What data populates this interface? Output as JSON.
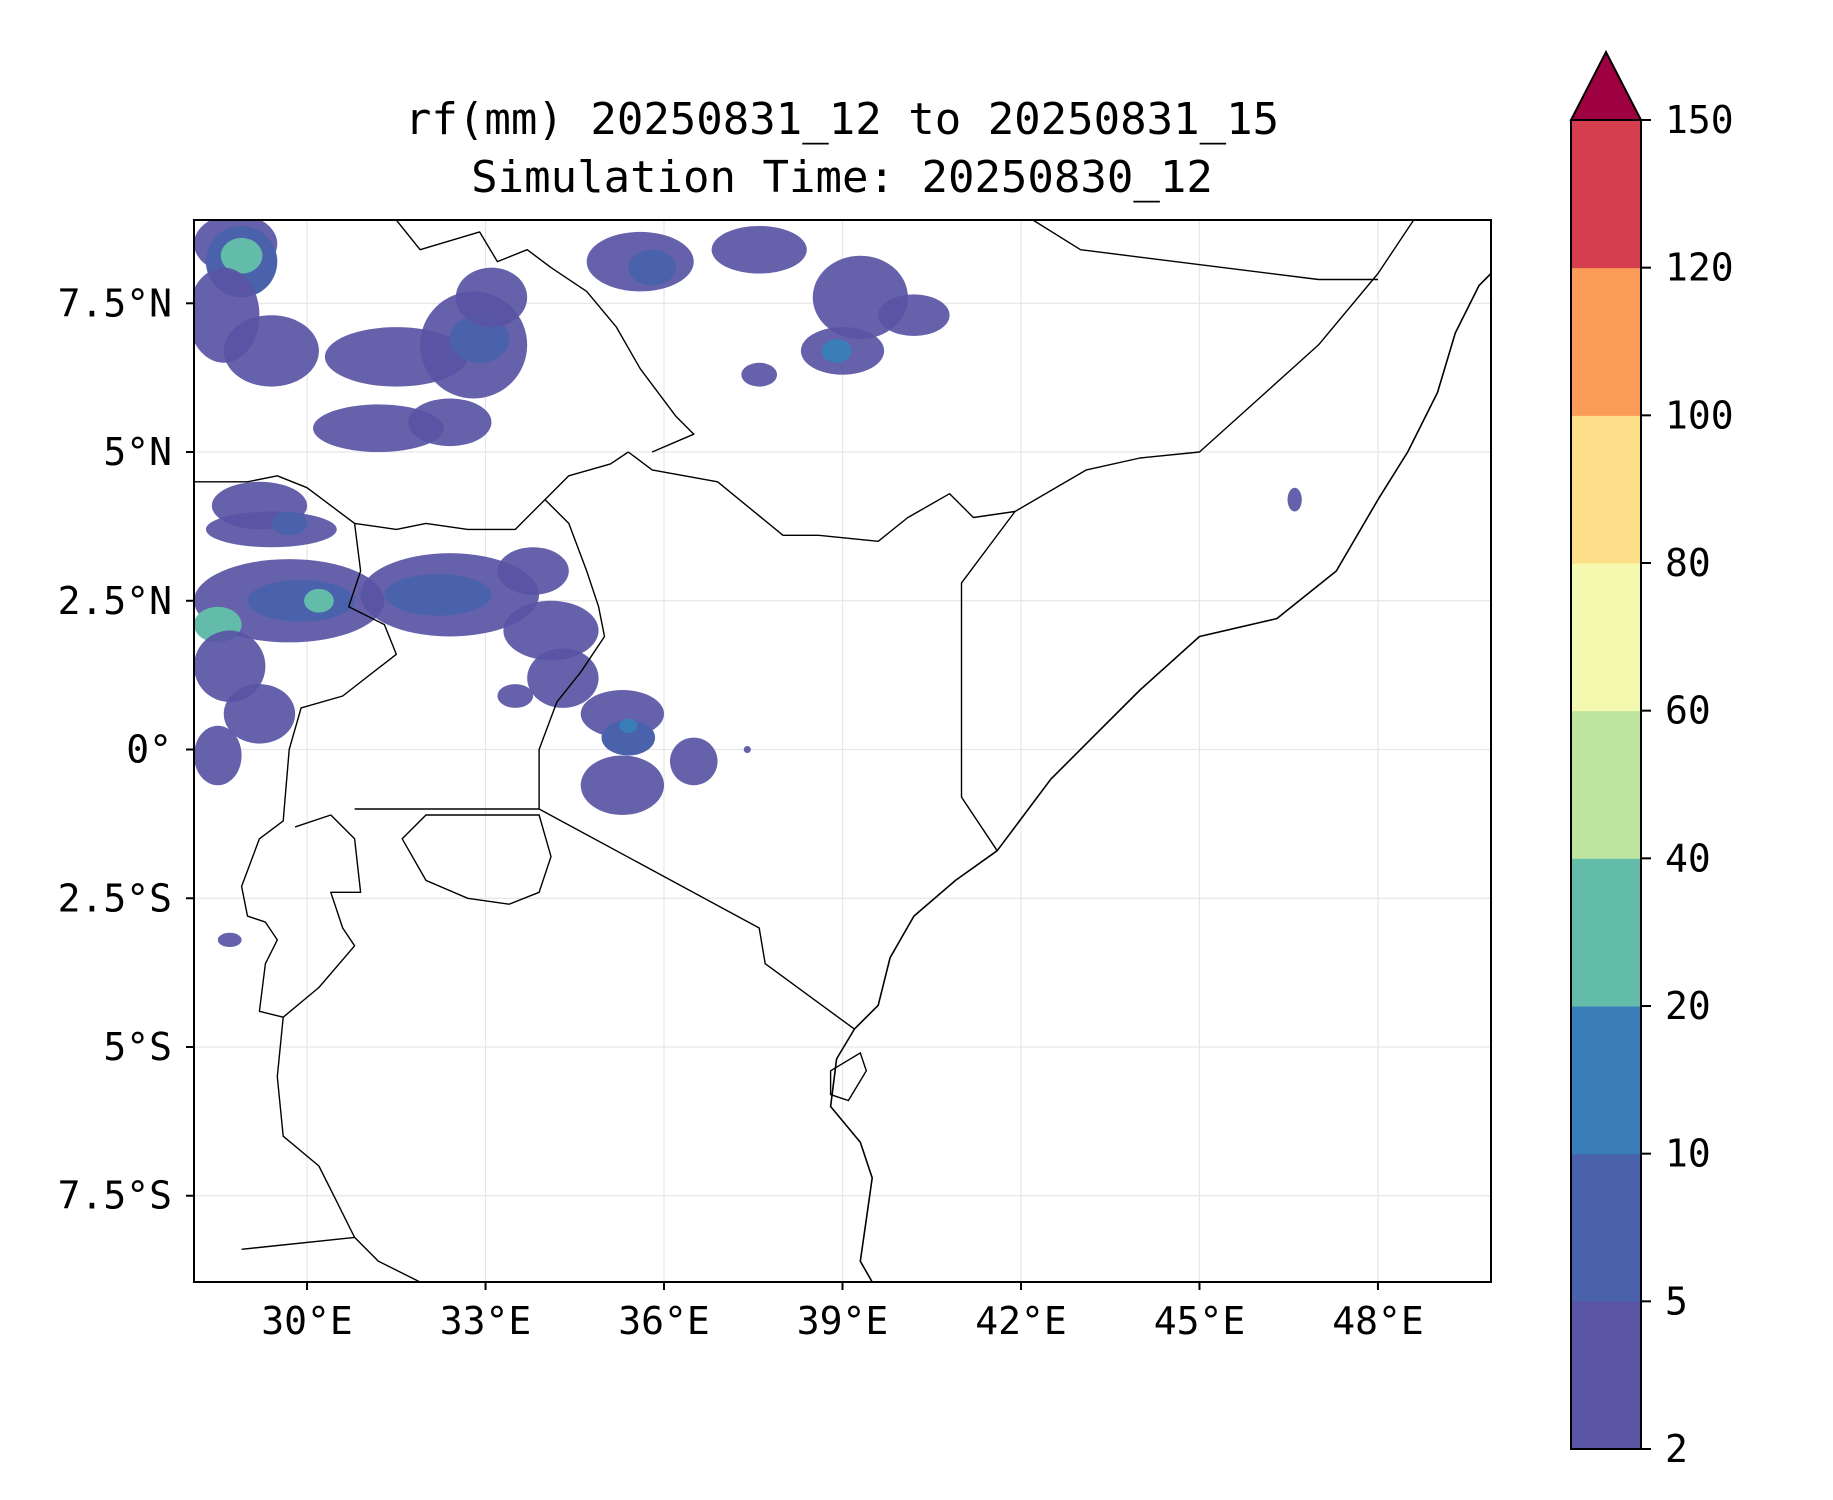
{
  "figure": {
    "title_line1": "rf(mm) 20250831_12 to 20250831_15",
    "title_line2": "Simulation Time: 20250830_12"
  },
  "map": {
    "lon_range": [
      28.1,
      49.9
    ],
    "lat_range": [
      -8.95,
      8.9
    ],
    "lon_ticks": [
      {
        "value": 30,
        "label": "30°E"
      },
      {
        "value": 33,
        "label": "33°E"
      },
      {
        "value": 36,
        "label": "36°E"
      },
      {
        "value": 39,
        "label": "39°E"
      },
      {
        "value": 42,
        "label": "42°E"
      },
      {
        "value": 45,
        "label": "45°E"
      },
      {
        "value": 48,
        "label": "48°E"
      }
    ],
    "lat_ticks": [
      {
        "value": 7.5,
        "label": "7.5°N"
      },
      {
        "value": 5,
        "label": "5°N"
      },
      {
        "value": 2.5,
        "label": "2.5°N"
      },
      {
        "value": 0,
        "label": "0°"
      },
      {
        "value": -2.5,
        "label": "2.5°S"
      },
      {
        "value": -5,
        "label": "5°S"
      },
      {
        "value": -7.5,
        "label": "7.5°S"
      }
    ],
    "gridlines": true,
    "coastline_color": "#000000",
    "grid_color": "#e6e6e6",
    "borders": [
      [
        [
          28.1,
          4.5
        ],
        [
          29,
          4.5
        ],
        [
          29.5,
          4.6
        ],
        [
          30,
          4.4
        ],
        [
          30.8,
          3.8
        ],
        [
          31.5,
          3.7
        ],
        [
          32,
          3.8
        ],
        [
          32.7,
          3.7
        ],
        [
          33.5,
          3.7
        ],
        [
          34,
          4.2
        ],
        [
          34.4,
          4.6
        ],
        [
          35.1,
          4.8
        ],
        [
          35.4,
          5
        ]
      ],
      [
        [
          34,
          4.2
        ],
        [
          34.4,
          3.8
        ],
        [
          34.7,
          3
        ],
        [
          34.9,
          2.4
        ],
        [
          35,
          1.9
        ],
        [
          34.6,
          1.3
        ],
        [
          34.2,
          0.8
        ],
        [
          33.9,
          0
        ],
        [
          33.9,
          -1
        ]
      ],
      [
        [
          30.8,
          3.8
        ],
        [
          30.9,
          3
        ],
        [
          30.7,
          2.4
        ],
        [
          31.3,
          2.1
        ],
        [
          31.5,
          1.6
        ],
        [
          30.6,
          0.9
        ],
        [
          29.9,
          0.7
        ],
        [
          29.7,
          0
        ],
        [
          29.6,
          -1.2
        ],
        [
          29.2,
          -1.5
        ],
        [
          28.9,
          -2.3
        ],
        [
          29,
          -2.8
        ],
        [
          29.3,
          -2.9
        ],
        [
          29.5,
          -3.2
        ],
        [
          29.3,
          -3.6
        ],
        [
          29.2,
          -4.4
        ],
        [
          29.6,
          -4.5
        ],
        [
          29.5,
          -5.5
        ],
        [
          29.6,
          -6.5
        ],
        [
          30.2,
          -7
        ],
        [
          30.5,
          -7.6
        ],
        [
          30.8,
          -8.2
        ],
        [
          31.2,
          -8.6
        ],
        [
          32,
          -9
        ]
      ],
      [
        [
          30.8,
          -1
        ],
        [
          33.9,
          -1
        ],
        [
          37.6,
          -3
        ],
        [
          37.7,
          -3.6
        ],
        [
          39.2,
          -4.7
        ]
      ],
      [
        [
          29.8,
          -1.3
        ],
        [
          30.4,
          -1.1
        ],
        [
          30.8,
          -1.5
        ],
        [
          30.9,
          -2.4
        ],
        [
          30.4,
          -2.4
        ],
        [
          30.6,
          -3
        ],
        [
          30.8,
          -3.3
        ],
        [
          30.2,
          -4
        ],
        [
          29.6,
          -4.5
        ]
      ],
      [
        [
          28.9,
          -8.4
        ],
        [
          30.8,
          -8.2
        ]
      ],
      [
        [
          35.4,
          5
        ],
        [
          35.8,
          4.7
        ],
        [
          36.9,
          4.5
        ],
        [
          38,
          3.6
        ],
        [
          38.6,
          3.6
        ],
        [
          39.6,
          3.5
        ],
        [
          40.1,
          3.9
        ],
        [
          40.8,
          4.3
        ],
        [
          41.2,
          3.9
        ],
        [
          41.9,
          4
        ]
      ],
      [
        [
          41.9,
          4
        ],
        [
          41,
          2.8
        ],
        [
          41,
          -0.8
        ],
        [
          41.6,
          -1.7
        ]
      ],
      [
        [
          41.9,
          4
        ],
        [
          43.1,
          4.7
        ],
        [
          44,
          4.9
        ],
        [
          45,
          5
        ],
        [
          47,
          6.8
        ],
        [
          48,
          8
        ],
        [
          48.6,
          8.9
        ]
      ],
      [
        [
          42.2,
          8.9
        ],
        [
          43,
          8.4
        ],
        [
          47,
          7.9
        ],
        [
          48,
          7.9
        ]
      ],
      [
        [
          31.5,
          8.9
        ],
        [
          31.9,
          8.4
        ],
        [
          32.9,
          8.7
        ],
        [
          33.2,
          8.2
        ],
        [
          33.7,
          8.4
        ],
        [
          34.1,
          8.1
        ],
        [
          34.7,
          7.7
        ],
        [
          35.2,
          7.1
        ],
        [
          35.6,
          6.4
        ],
        [
          36.2,
          5.6
        ],
        [
          36.5,
          5.3
        ],
        [
          35.8,
          5
        ]
      ]
    ],
    "coastlines": [
      [
        [
          49.9,
          8
        ],
        [
          49.7,
          7.8
        ],
        [
          49.3,
          7
        ],
        [
          49,
          6
        ],
        [
          48.5,
          5
        ],
        [
          48,
          4.2
        ],
        [
          47.3,
          3
        ],
        [
          46.3,
          2.2
        ],
        [
          45,
          1.9
        ],
        [
          44,
          1
        ],
        [
          43.2,
          0.2
        ],
        [
          42.5,
          -0.5
        ],
        [
          41.6,
          -1.7
        ],
        [
          40.9,
          -2.2
        ],
        [
          40.2,
          -2.8
        ],
        [
          39.8,
          -3.5
        ],
        [
          39.6,
          -4.3
        ],
        [
          39.2,
          -4.7
        ],
        [
          38.9,
          -5.2
        ],
        [
          38.8,
          -6
        ],
        [
          39.3,
          -6.6
        ],
        [
          39.5,
          -7.2
        ],
        [
          39.4,
          -7.9
        ],
        [
          39.3,
          -8.6
        ],
        [
          39.5,
          -8.95
        ]
      ]
    ],
    "lakes": [
      [
        [
          32,
          -1.1
        ],
        [
          33.9,
          -1.1
        ],
        [
          34.1,
          -1.8
        ],
        [
          33.9,
          -2.4
        ],
        [
          33.4,
          -2.6
        ],
        [
          32.7,
          -2.5
        ],
        [
          32,
          -2.2
        ],
        [
          31.6,
          -1.5
        ]
      ],
      [
        [
          38.8,
          -5.4
        ],
        [
          39.3,
          -5.1
        ],
        [
          39.4,
          -5.4
        ],
        [
          39.1,
          -5.9
        ],
        [
          38.8,
          -5.8
        ]
      ]
    ],
    "rain_cells": [
      {
        "lon": 28.8,
        "lat": 8.5,
        "rx": 0.7,
        "ry": 0.5,
        "level": 0
      },
      {
        "lon": 28.9,
        "lat": 8.2,
        "rx": 0.6,
        "ry": 0.6,
        "level": 1
      },
      {
        "lon": 28.9,
        "lat": 8.3,
        "rx": 0.35,
        "ry": 0.3,
        "level": 3
      },
      {
        "lon": 28.6,
        "lat": 7.3,
        "rx": 0.6,
        "ry": 0.8,
        "level": 0
      },
      {
        "lon": 29.4,
        "lat": 6.7,
        "rx": 0.8,
        "ry": 0.6,
        "level": 0
      },
      {
        "lon": 31.5,
        "lat": 6.6,
        "rx": 1.2,
        "ry": 0.5,
        "level": 0
      },
      {
        "lon": 32.8,
        "lat": 6.8,
        "rx": 0.9,
        "ry": 0.9,
        "level": 0
      },
      {
        "lon": 32.9,
        "lat": 6.9,
        "rx": 0.5,
        "ry": 0.4,
        "level": 1
      },
      {
        "lon": 33.1,
        "lat": 7.6,
        "rx": 0.6,
        "ry": 0.5,
        "level": 0
      },
      {
        "lon": 31.2,
        "lat": 5.4,
        "rx": 1.1,
        "ry": 0.4,
        "level": 0
      },
      {
        "lon": 32.4,
        "lat": 5.5,
        "rx": 0.7,
        "ry": 0.4,
        "level": 0
      },
      {
        "lon": 35.6,
        "lat": 8.2,
        "rx": 0.9,
        "ry": 0.5,
        "level": 0
      },
      {
        "lon": 35.8,
        "lat": 8.1,
        "rx": 0.4,
        "ry": 0.3,
        "level": 1
      },
      {
        "lon": 37.6,
        "lat": 8.4,
        "rx": 0.8,
        "ry": 0.4,
        "level": 0
      },
      {
        "lon": 39.3,
        "lat": 7.6,
        "rx": 0.8,
        "ry": 0.7,
        "level": 0
      },
      {
        "lon": 40.2,
        "lat": 7.3,
        "rx": 0.6,
        "ry": 0.35,
        "level": 0
      },
      {
        "lon": 39,
        "lat": 6.7,
        "rx": 0.7,
        "ry": 0.4,
        "level": 0
      },
      {
        "lon": 38.9,
        "lat": 6.7,
        "rx": 0.25,
        "ry": 0.2,
        "level": 2
      },
      {
        "lon": 37.6,
        "lat": 6.3,
        "rx": 0.3,
        "ry": 0.2,
        "level": 0
      },
      {
        "lon": 29.2,
        "lat": 4.1,
        "rx": 0.8,
        "ry": 0.4,
        "level": 0
      },
      {
        "lon": 29.4,
        "lat": 3.7,
        "rx": 1.1,
        "ry": 0.3,
        "level": 0
      },
      {
        "lon": 29.7,
        "lat": 3.8,
        "rx": 0.3,
        "ry": 0.2,
        "level": 1
      },
      {
        "lon": 29.7,
        "lat": 2.5,
        "rx": 1.6,
        "ry": 0.7,
        "level": 0
      },
      {
        "lon": 29.9,
        "lat": 2.5,
        "rx": 0.9,
        "ry": 0.35,
        "level": 1
      },
      {
        "lon": 28.5,
        "lat": 2.1,
        "rx": 0.4,
        "ry": 0.3,
        "level": 3
      },
      {
        "lon": 30.2,
        "lat": 2.5,
        "rx": 0.25,
        "ry": 0.2,
        "level": 3
      },
      {
        "lon": 28.7,
        "lat": 1.4,
        "rx": 0.6,
        "ry": 0.6,
        "level": 0
      },
      {
        "lon": 29.2,
        "lat": 0.6,
        "rx": 0.6,
        "ry": 0.5,
        "level": 0
      },
      {
        "lon": 28.5,
        "lat": -0.1,
        "rx": 0.4,
        "ry": 0.5,
        "level": 0
      },
      {
        "lon": 32.4,
        "lat": 2.6,
        "rx": 1.5,
        "ry": 0.7,
        "level": 0
      },
      {
        "lon": 32.2,
        "lat": 2.6,
        "rx": 0.9,
        "ry": 0.35,
        "level": 1
      },
      {
        "lon": 33.8,
        "lat": 3.0,
        "rx": 0.6,
        "ry": 0.4,
        "level": 0
      },
      {
        "lon": 34.1,
        "lat": 2,
        "rx": 0.8,
        "ry": 0.5,
        "level": 0
      },
      {
        "lon": 34.3,
        "lat": 1.2,
        "rx": 0.6,
        "ry": 0.5,
        "level": 0
      },
      {
        "lon": 35.3,
        "lat": 0.6,
        "rx": 0.7,
        "ry": 0.4,
        "level": 0
      },
      {
        "lon": 35.4,
        "lat": 0.2,
        "rx": 0.45,
        "ry": 0.3,
        "level": 1
      },
      {
        "lon": 35.4,
        "lat": 0.4,
        "rx": 0.15,
        "ry": 0.12,
        "level": 2
      },
      {
        "lon": 35.3,
        "lat": -0.6,
        "rx": 0.7,
        "ry": 0.5,
        "level": 0
      },
      {
        "lon": 36.5,
        "lat": -0.2,
        "rx": 0.4,
        "ry": 0.4,
        "level": 0
      },
      {
        "lon": 33.5,
        "lat": 0.9,
        "rx": 0.3,
        "ry": 0.2,
        "level": 0
      },
      {
        "lon": 37.4,
        "lat": 0,
        "rx": 0.06,
        "ry": 0.06,
        "level": 0
      },
      {
        "lon": 28.7,
        "lat": -3.2,
        "rx": 0.2,
        "ry": 0.12,
        "level": 0
      },
      {
        "lon": 46.6,
        "lat": 4.2,
        "rx": 0.12,
        "ry": 0.2,
        "level": 0
      }
    ]
  },
  "colorbar": {
    "levels": [
      "2",
      "5",
      "10",
      "20",
      "40",
      "60",
      "80",
      "100",
      "120",
      "150"
    ],
    "colors": [
      "#5954a4",
      "#4a62ab",
      "#3a7eb9",
      "#62bca9",
      "#bde5a0",
      "#f3faaf",
      "#fddf8a",
      "#fa9b58",
      "#d53e4f"
    ],
    "extend_color": "#9e0142",
    "extend": "max"
  }
}
